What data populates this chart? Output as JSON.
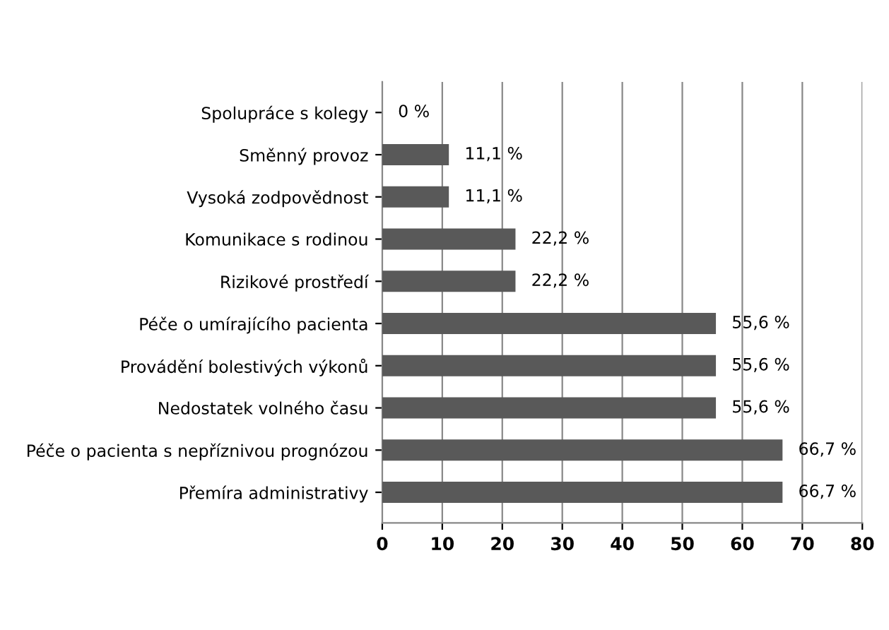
{
  "chart_data": {
    "type": "bar",
    "orientation": "horizontal",
    "categories": [
      "Spolupráce s kolegy",
      "Směnný provoz",
      "Vysoká zodpovědnost",
      "Komunikace s rodinou",
      "Rizikové prostředí",
      "Péče o umírajícího pacienta",
      "Provádění bolestivých výkonů",
      "Nedostatek volného času",
      "Péče o pacienta s nepříznivou prognózou",
      "Přemíra administrativy"
    ],
    "values": [
      0,
      11.1,
      11.1,
      22.2,
      22.2,
      55.6,
      55.6,
      55.6,
      66.7,
      66.7
    ],
    "value_labels": [
      "0 %",
      "11,1 %",
      "11,1 %",
      "22,2 %",
      "22,2 %",
      "55,6 %",
      "55,6 %",
      "55,6 %",
      "66,7 %",
      "66,7 %"
    ],
    "color": "#595959",
    "xlim": [
      0,
      80
    ],
    "xticks": [
      0,
      10,
      20,
      30,
      40,
      50,
      60,
      70,
      80
    ],
    "grid": "x",
    "legend": false
  }
}
